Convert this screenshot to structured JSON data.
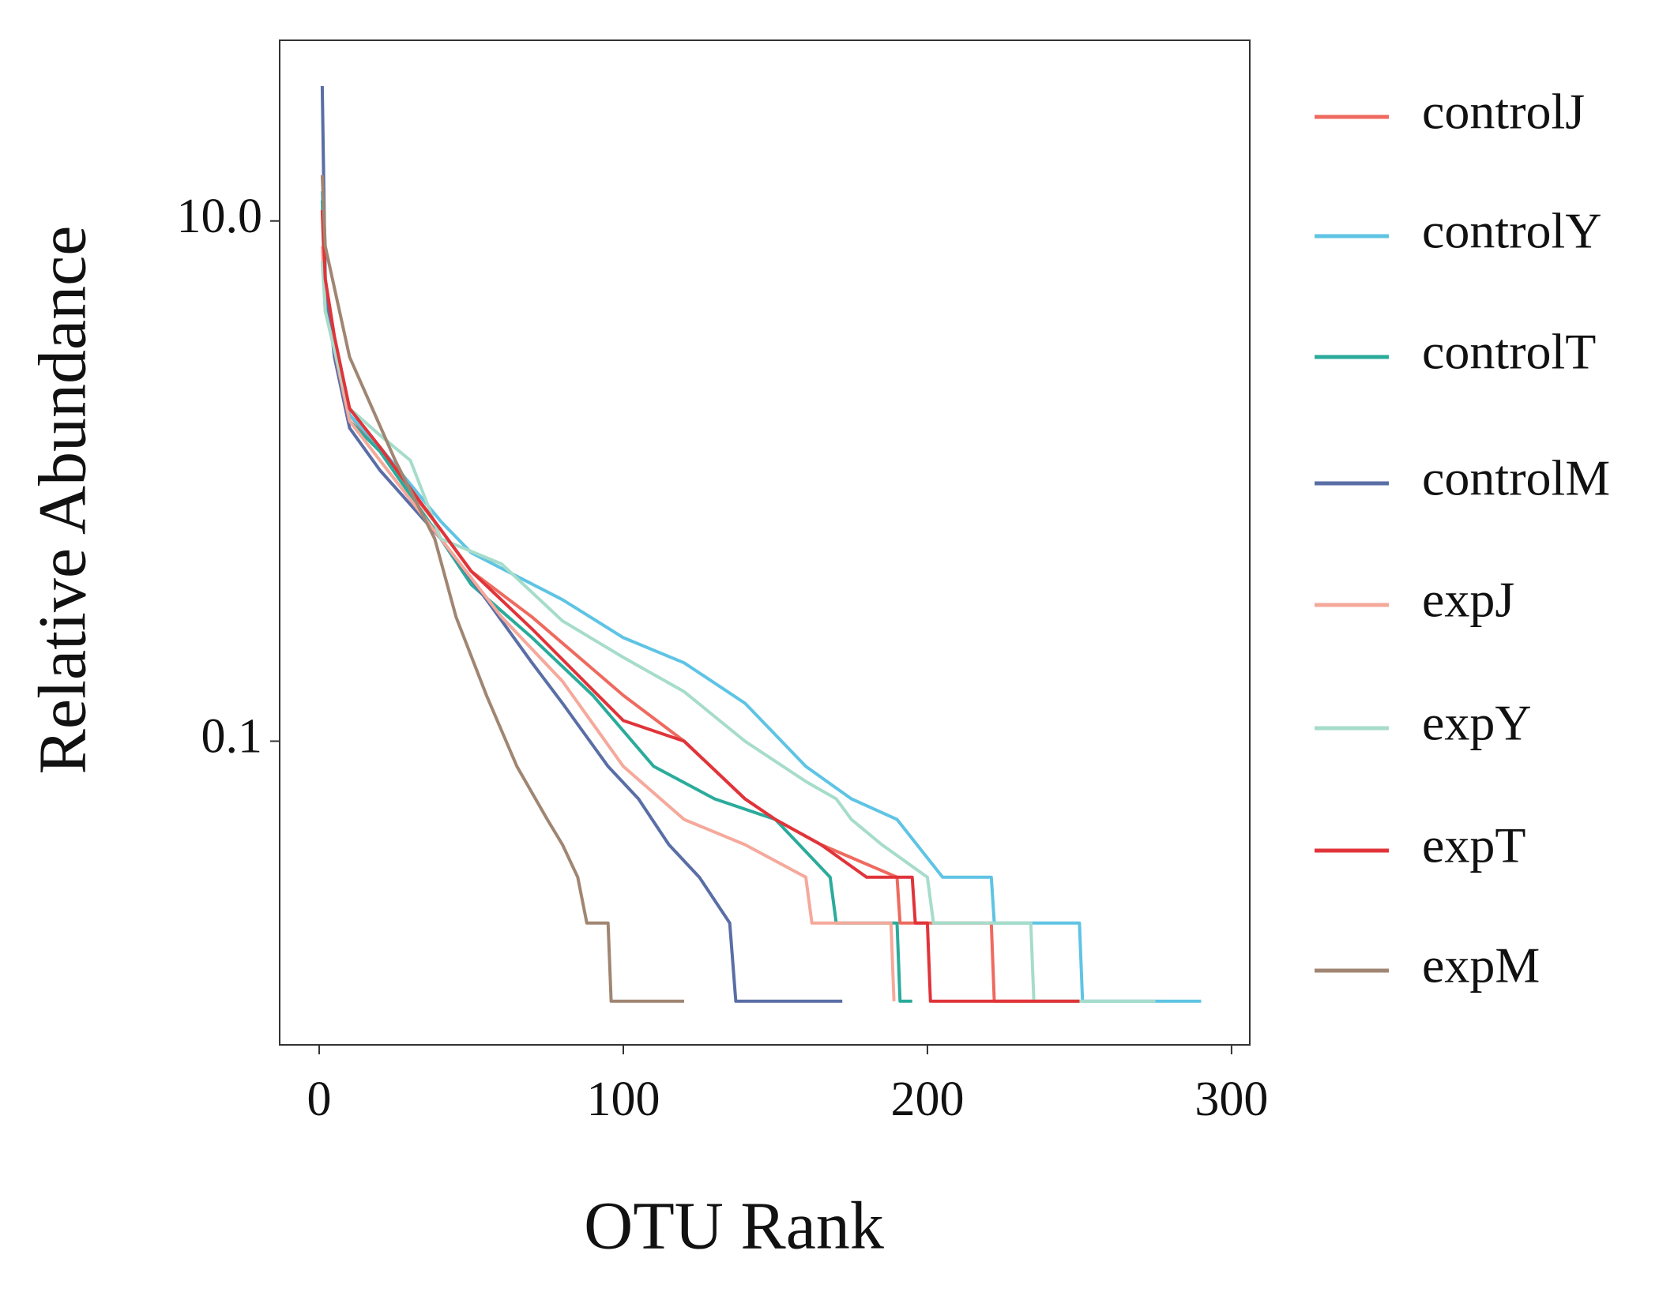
{
  "chart_data": {
    "type": "line",
    "x_label": "OTU Rank",
    "y_label": "Relative Abundance",
    "yscale": "log",
    "grid": false,
    "legend": "right",
    "xlim": [
      -13,
      306
    ],
    "xticks": [
      0,
      100,
      200,
      300
    ],
    "ylim": [
      0.0068,
      49.5
    ],
    "yticks": [
      {
        "value": 10,
        "label": "10.0"
      },
      0.1
    ],
    "series": [
      {
        "name": "controlJ",
        "color": "#ee6a5f",
        "x": [
          1,
          2,
          5,
          10,
          20,
          40,
          50,
          70,
          100,
          120,
          140,
          150,
          165,
          190,
          191,
          221,
          222,
          250
        ],
        "values": [
          11,
          5,
          3.5,
          1.8,
          1.3,
          0.65,
          0.45,
          0.3,
          0.15,
          0.1,
          0.06,
          0.05,
          0.04,
          0.03,
          0.02,
          0.02,
          0.01,
          0.01
        ]
      },
      {
        "name": "controlY",
        "color": "#5fc4e4",
        "x": [
          1,
          2,
          5,
          10,
          20,
          40,
          50,
          80,
          100,
          120,
          140,
          160,
          175,
          190,
          205,
          221,
          222,
          250,
          251,
          290
        ],
        "values": [
          13,
          5,
          3.5,
          1.8,
          1.35,
          0.7,
          0.53,
          0.35,
          0.25,
          0.2,
          0.14,
          0.08,
          0.06,
          0.05,
          0.03,
          0.03,
          0.02,
          0.02,
          0.01,
          0.01
        ]
      },
      {
        "name": "controlT",
        "color": "#2bab9b",
        "x": [
          1,
          2,
          5,
          10,
          20,
          40,
          50,
          70,
          90,
          110,
          130,
          150,
          168,
          170,
          190,
          191,
          195
        ],
        "values": [
          12,
          5,
          3.3,
          1.7,
          1.3,
          0.6,
          0.4,
          0.25,
          0.15,
          0.08,
          0.06,
          0.05,
          0.03,
          0.02,
          0.02,
          0.01,
          0.01
        ]
      },
      {
        "name": "controlM",
        "color": "#5a6ea6",
        "x": [
          1,
          2,
          5,
          10,
          20,
          40,
          55,
          70,
          80,
          95,
          105,
          115,
          125,
          135,
          137,
          172
        ],
        "values": [
          33,
          6,
          3,
          1.6,
          1.1,
          0.6,
          0.35,
          0.2,
          0.14,
          0.08,
          0.06,
          0.04,
          0.03,
          0.02,
          0.01,
          0.01
        ]
      },
      {
        "name": "expJ",
        "color": "#f5a99b",
        "x": [
          1,
          2,
          5,
          10,
          20,
          40,
          60,
          80,
          100,
          120,
          140,
          160,
          162,
          188,
          189
        ],
        "values": [
          8,
          4.5,
          3.2,
          1.7,
          1.2,
          0.6,
          0.3,
          0.17,
          0.08,
          0.05,
          0.04,
          0.03,
          0.02,
          0.02,
          0.01
        ]
      },
      {
        "name": "expY",
        "color": "#a6dccb",
        "x": [
          1,
          2,
          5,
          10,
          20,
          30,
          40,
          60,
          80,
          100,
          120,
          140,
          160,
          170,
          175,
          185,
          200,
          202,
          234,
          235,
          275
        ],
        "values": [
          7,
          4.5,
          3.2,
          1.9,
          1.5,
          1.2,
          0.6,
          0.48,
          0.29,
          0.21,
          0.155,
          0.1,
          0.07,
          0.06,
          0.05,
          0.04,
          0.03,
          0.02,
          0.02,
          0.01,
          0.01
        ]
      },
      {
        "name": "expT",
        "color": "#e0343a",
        "x": [
          1,
          2,
          5,
          10,
          20,
          40,
          50,
          70,
          100,
          120,
          140,
          150,
          165,
          180,
          195,
          196,
          200,
          201,
          250
        ],
        "values": [
          11,
          6,
          3.6,
          1.9,
          1.35,
          0.65,
          0.45,
          0.27,
          0.12,
          0.1,
          0.06,
          0.05,
          0.04,
          0.03,
          0.03,
          0.02,
          0.02,
          0.01,
          0.01
        ]
      },
      {
        "name": "expM",
        "color": "#a08672",
        "x": [
          1,
          2,
          10,
          25,
          38,
          45,
          55,
          65,
          75,
          80,
          85,
          88,
          95,
          96,
          120
        ],
        "values": [
          15,
          8,
          3,
          1.2,
          0.6,
          0.3,
          0.15,
          0.08,
          0.05,
          0.04,
          0.03,
          0.02,
          0.02,
          0.01,
          0.01
        ]
      }
    ]
  }
}
